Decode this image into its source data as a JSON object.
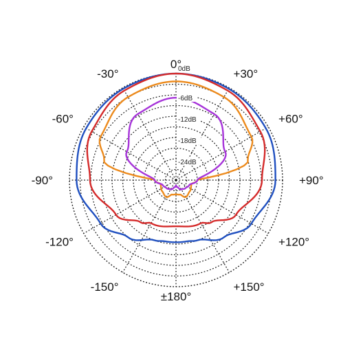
{
  "chart_data": {
    "type": "polar",
    "title": "",
    "angle_unit": "degrees",
    "angle_ticks": [
      {
        "deg": 0,
        "label": "0°"
      },
      {
        "deg": 30,
        "label": "+30°"
      },
      {
        "deg": 60,
        "label": "+60°"
      },
      {
        "deg": 90,
        "label": "+90°"
      },
      {
        "deg": 120,
        "label": "+120°"
      },
      {
        "deg": 150,
        "label": "+150°"
      },
      {
        "deg": 180,
        "label": "±180°"
      },
      {
        "deg": -150,
        "label": "-150°"
      },
      {
        "deg": -120,
        "label": "-120°"
      },
      {
        "deg": -90,
        "label": "-90°"
      },
      {
        "deg": -60,
        "label": "-60°"
      },
      {
        "deg": -30,
        "label": "-30°"
      }
    ],
    "radial_range_db": [
      -30,
      0
    ],
    "radial_ticks": [
      {
        "db": 0,
        "label": "0dB"
      },
      {
        "db": -6,
        "label": "-6dB"
      },
      {
        "db": -12,
        "label": "-12dB"
      },
      {
        "db": -18,
        "label": "-18dB"
      },
      {
        "db": -24,
        "label": "-24dB"
      }
    ],
    "grid": true,
    "legend": "none",
    "series": [
      {
        "color": "#1f4fbf",
        "angles": [
          0,
          30,
          60,
          90,
          120,
          140,
          160,
          170,
          180
        ],
        "values_db": [
          0,
          -0.3,
          -0.8,
          -2.0,
          -5.5,
          -9.0,
          -12.0,
          -12.5,
          -12.5
        ]
      },
      {
        "color": "#d42a2a",
        "angles": [
          0,
          30,
          60,
          90,
          120,
          140,
          150,
          180
        ],
        "values_db": [
          0,
          -0.9,
          -2.6,
          -5.8,
          -10.5,
          -14.5,
          -16.0,
          -17.0
        ]
      },
      {
        "color": "#ec8a1c",
        "angles": [
          0,
          30,
          60,
          75,
          90,
          105,
          130,
          150,
          165,
          180
        ],
        "values_db": [
          -2.2,
          -3.0,
          -5.5,
          -9.0,
          -24.0,
          -25.5,
          -25.0,
          -24.5,
          -25.8,
          -26.0
        ]
      },
      {
        "color": "#a633d9",
        "angles": [
          0,
          30,
          60,
          90,
          110,
          130,
          150,
          170,
          180
        ],
        "values_db": [
          -6.8,
          -8.5,
          -14.0,
          -24.0,
          -26.0,
          -26.5,
          -27.0,
          -28.0,
          -28.5
        ]
      }
    ]
  }
}
